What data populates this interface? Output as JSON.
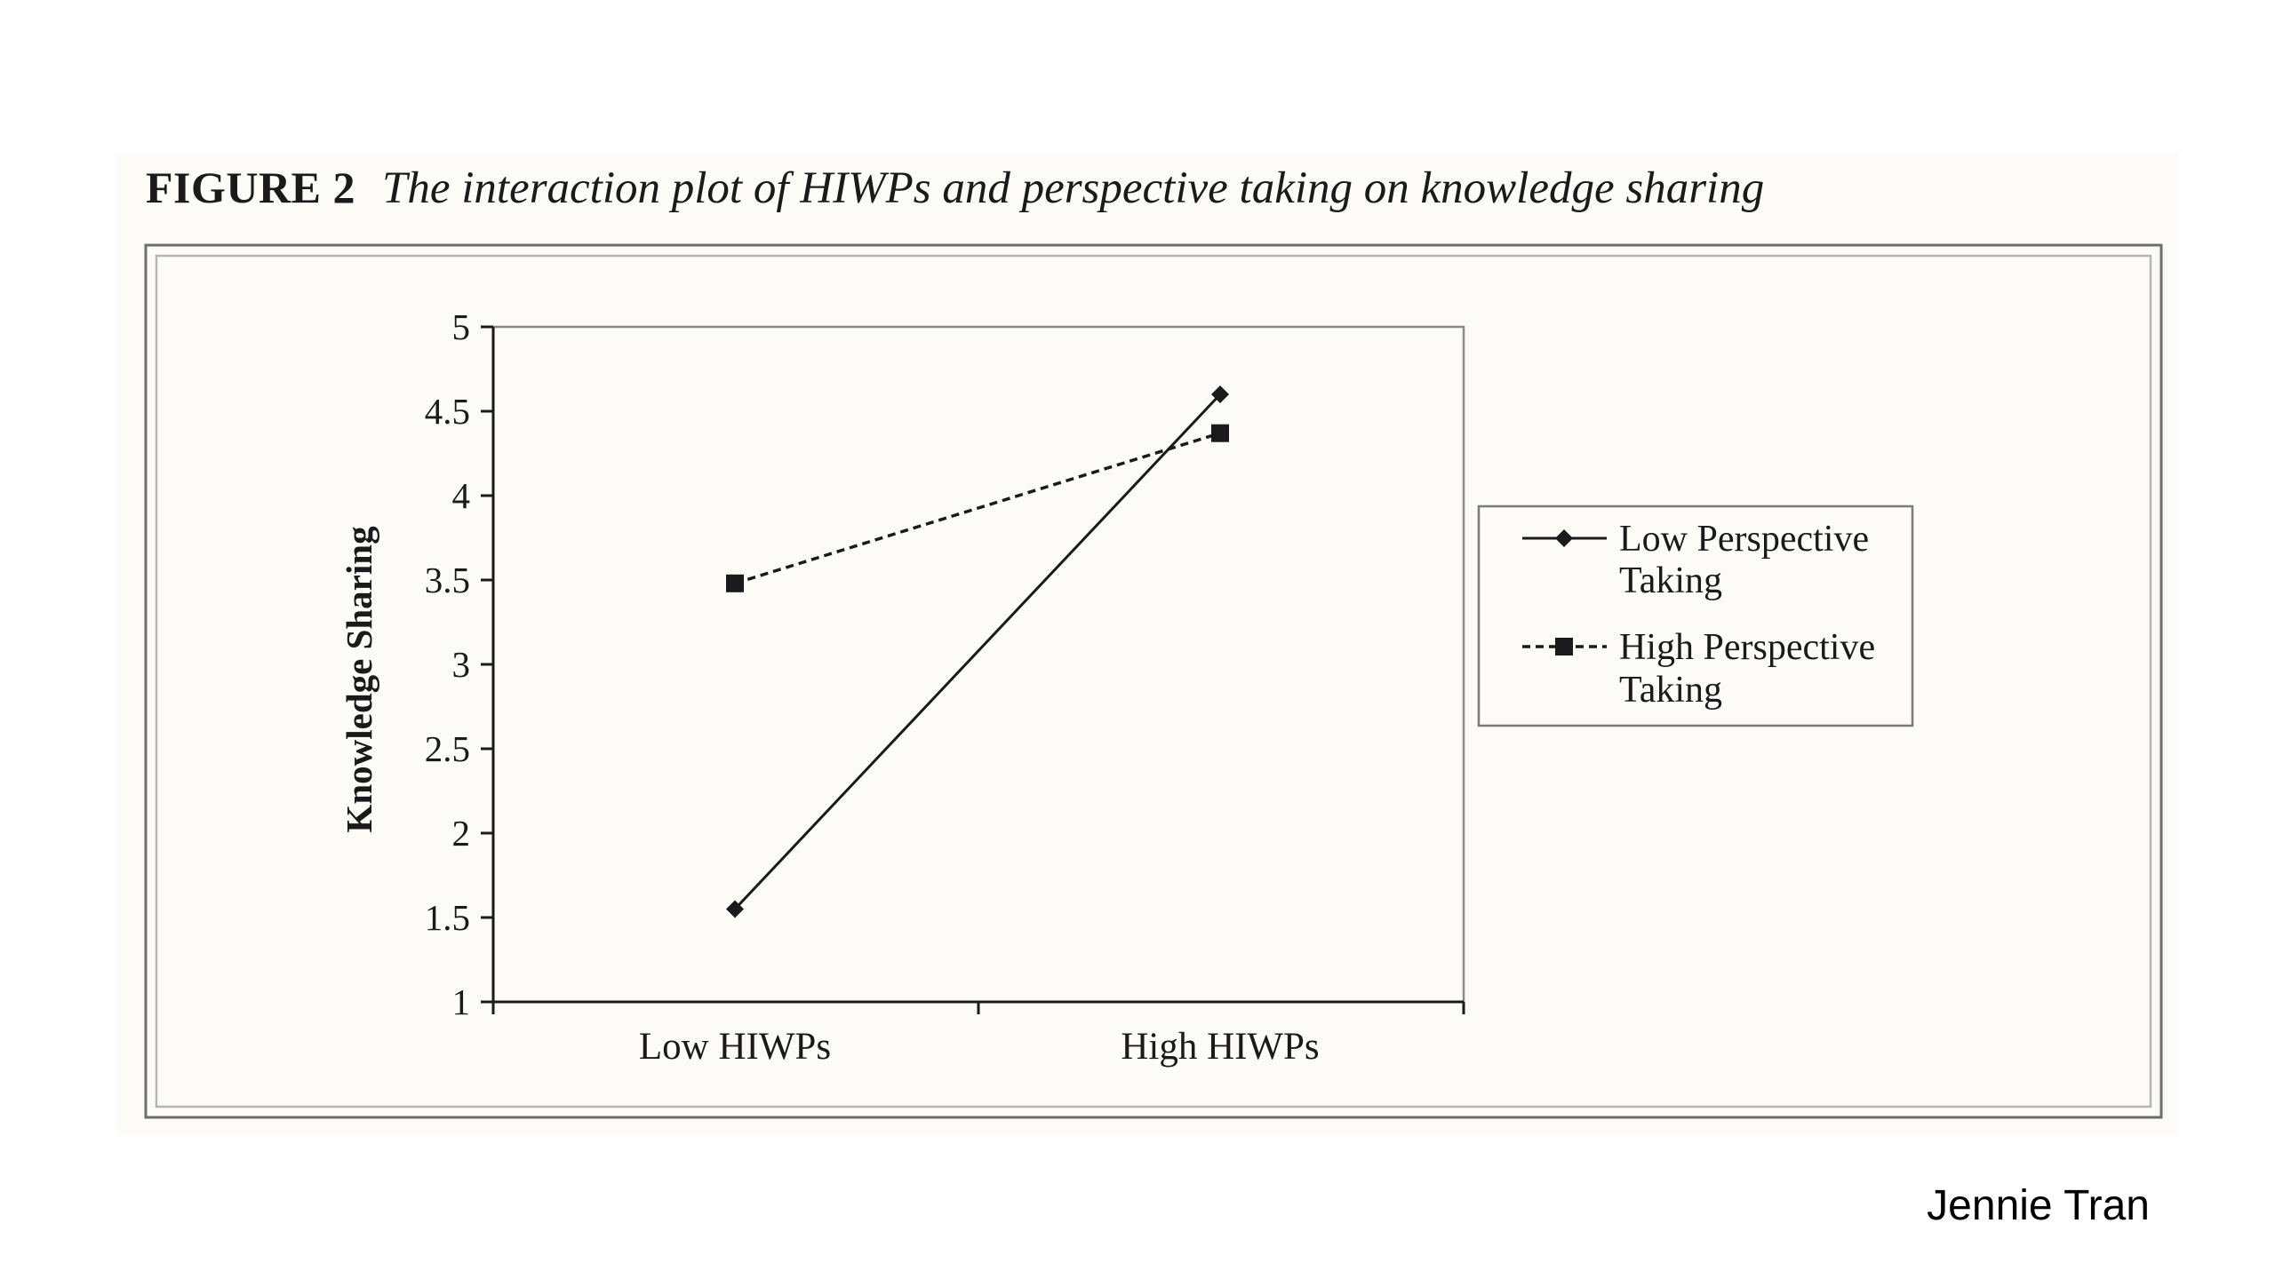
{
  "figure": {
    "number": "FIGURE 2",
    "caption": "The interaction plot of HIWPs and perspective taking on knowledge sharing"
  },
  "footer": {
    "author": "Jennie Tran"
  },
  "colors": {
    "ink": "#1a1a1a",
    "panel": "#fcfbf8",
    "frame": "#6e6e6e"
  },
  "chart_data": {
    "type": "line",
    "title": "",
    "xlabel": "",
    "ylabel": "Knowledge Sharing",
    "categories": [
      "Low HIWPs",
      "High HIWPs"
    ],
    "ylim": [
      1,
      5
    ],
    "yticks": [
      "1",
      "1.5",
      "2",
      "2.5",
      "3",
      "3.5",
      "4",
      "4.5",
      "5"
    ],
    "ytick_values": [
      1,
      1.5,
      2,
      2.5,
      3,
      3.5,
      4,
      4.5,
      5
    ],
    "grid": false,
    "legend_position": "right",
    "series": [
      {
        "name": "Low Perspective Taking",
        "legend_lines": [
          "Low Perspective",
          "Taking"
        ],
        "values": [
          1.55,
          4.6
        ],
        "line_style": "solid",
        "marker": "diamond"
      },
      {
        "name": "High Perspective Taking",
        "legend_lines": [
          "High Perspective",
          "Taking"
        ],
        "values": [
          3.48,
          4.37
        ],
        "line_style": "dashed",
        "marker": "square"
      }
    ]
  }
}
